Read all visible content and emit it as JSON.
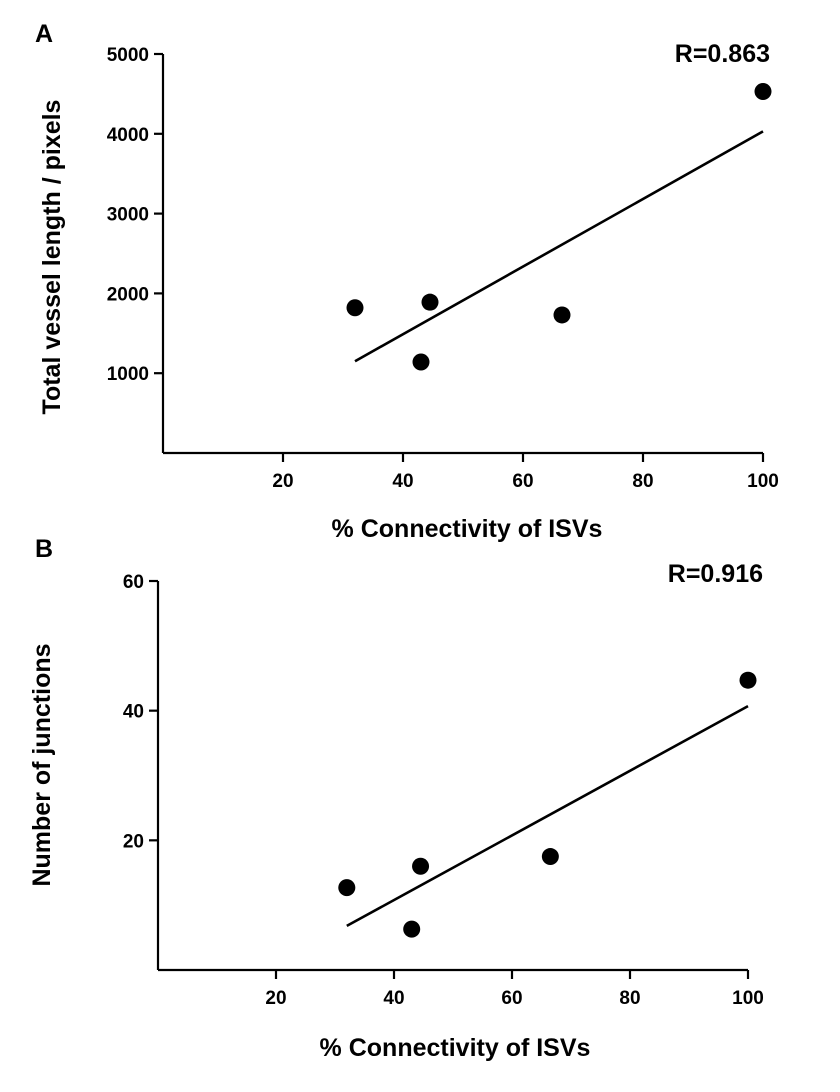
{
  "chart_data": [
    {
      "type": "scatter",
      "panel_label": "A",
      "annotation": "R=0.863",
      "xlabel": "% Connectivity of ISVs",
      "ylabel": "Total vessel length / pixels",
      "xlim": [
        0,
        100
      ],
      "ylim": [
        0,
        5000
      ],
      "xticks": [
        "20",
        "40",
        "60",
        "80",
        "100"
      ],
      "yticks": [
        "1000",
        "2000",
        "3000",
        "4000",
        "5000"
      ],
      "xtick_values": [
        20,
        40,
        60,
        80,
        100
      ],
      "ytick_values": [
        1000,
        2000,
        3000,
        4000,
        5000
      ],
      "points": [
        {
          "x": 32,
          "y": 1820
        },
        {
          "x": 43,
          "y": 1140
        },
        {
          "x": 44.5,
          "y": 1890
        },
        {
          "x": 66.5,
          "y": 1730
        },
        {
          "x": 100,
          "y": 4530
        }
      ],
      "fit_line": {
        "x": [
          32,
          100
        ],
        "y": [
          1150,
          4030
        ]
      }
    },
    {
      "type": "scatter",
      "panel_label": "B",
      "annotation": "R=0.916",
      "xlabel": "% Connectivity of ISVs",
      "ylabel": "Number of junctions",
      "xlim": [
        0,
        100
      ],
      "ylim": [
        0,
        60
      ],
      "xticks": [
        "20",
        "40",
        "60",
        "80",
        "100"
      ],
      "yticks": [
        "20",
        "40",
        "60"
      ],
      "xtick_values": [
        20,
        40,
        60,
        80,
        100
      ],
      "ytick_values": [
        20,
        40,
        60
      ],
      "points": [
        {
          "x": 32,
          "y": 12.7
        },
        {
          "x": 43,
          "y": 6.3
        },
        {
          "x": 44.5,
          "y": 16
        },
        {
          "x": 66.5,
          "y": 17.5
        },
        {
          "x": 100,
          "y": 44.7
        }
      ],
      "fit_line": {
        "x": [
          32,
          100
        ],
        "y": [
          6.8,
          40.7
        ]
      }
    }
  ]
}
